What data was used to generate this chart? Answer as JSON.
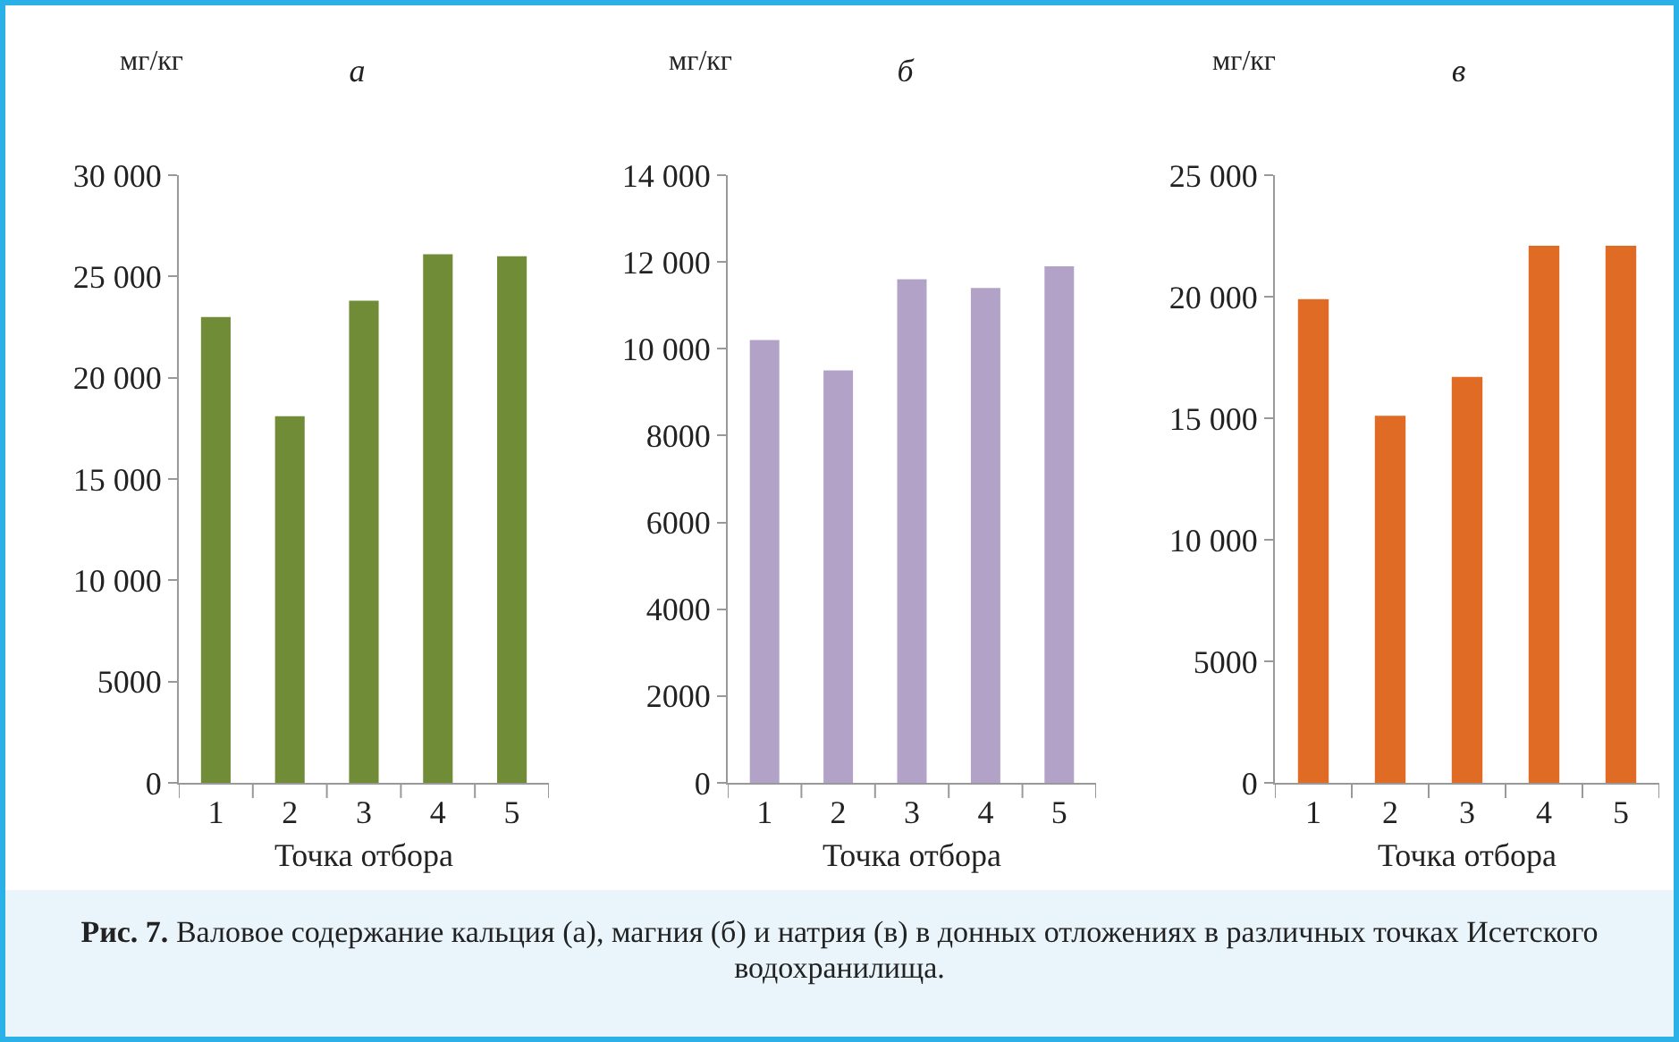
{
  "chart_data": [
    {
      "type": "bar",
      "title": "а",
      "ylabel": "мг/кг",
      "xlabel": "Точка отбора",
      "categories": [
        "1",
        "2",
        "3",
        "4",
        "5"
      ],
      "values": [
        23000,
        18100,
        23800,
        26100,
        26000
      ],
      "color": "#718c37",
      "ylim": [
        0,
        30000
      ],
      "yticks": [
        0,
        5000,
        {
          "value": 10000,
          "label": "10 000"
        },
        {
          "value": 15000,
          "label": "15 000"
        },
        {
          "value": 20000,
          "label": "20 000"
        },
        {
          "value": 25000,
          "label": "25 000"
        },
        {
          "value": 30000,
          "label": "30 000"
        }
      ],
      "grid": false,
      "legend": false,
      "annotations": [
        "Рис. 7. Валовое содержание кальция (а), магния (б) и натрия (в) в донных отложениях в различных точках Исетского водохранилища."
      ]
    },
    {
      "type": "bar",
      "title": "б",
      "ylabel": "мг/кг",
      "xlabel": "Точка отбора",
      "categories": [
        "1",
        "2",
        "3",
        "4",
        "5"
      ],
      "values": [
        10200,
        9500,
        11600,
        11400,
        11900
      ],
      "color": "#b2a2c7",
      "ylim": [
        0,
        14000
      ],
      "yticks": [
        0,
        2000,
        4000,
        6000,
        8000,
        {
          "value": 10000,
          "label": "10 000"
        },
        {
          "value": 12000,
          "label": "12 000"
        },
        {
          "value": 14000,
          "label": "14 000"
        }
      ],
      "grid": false,
      "legend": false
    },
    {
      "type": "bar",
      "title": "в",
      "ylabel": "мг/кг",
      "xlabel": "Точка отбора",
      "categories": [
        "1",
        "2",
        "3",
        "4",
        "5"
      ],
      "values": [
        19900,
        15100,
        16700,
        22100,
        22100
      ],
      "color": "#e06b25",
      "ylim": [
        0,
        25000
      ],
      "yticks": [
        0,
        5000,
        {
          "value": 10000,
          "label": "10 000"
        },
        {
          "value": 15000,
          "label": "15 000"
        },
        {
          "value": 20000,
          "label": "20 000"
        },
        {
          "value": 25000,
          "label": "25 000"
        }
      ],
      "grid": false,
      "legend": false
    }
  ]
}
